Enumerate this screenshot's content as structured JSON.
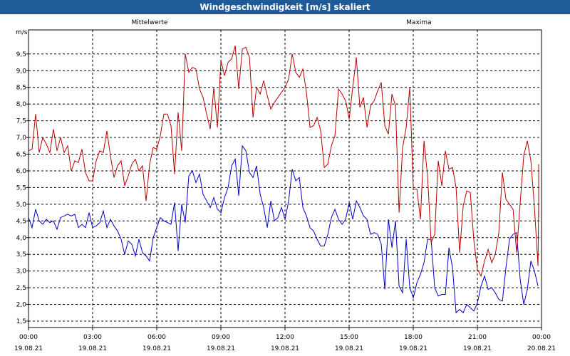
{
  "window": {
    "title": "Windgeschwindigkeit [m/s] skaliert"
  },
  "chart_data": {
    "type": "line",
    "title": "Windgeschwindigkeit [m/s] skaliert",
    "ylabel": "m/s",
    "ylim": [
      1.25,
      10.1
    ],
    "yticks": [
      "1,5",
      "2,0",
      "2,5",
      "3,0",
      "3,5",
      "4,0",
      "4,5",
      "5,0",
      "5,5",
      "6,0",
      "6,5",
      "7,0",
      "7,5",
      "8,0",
      "8,5",
      "9,0",
      "9,5"
    ],
    "xlim": [
      0,
      24
    ],
    "xticks": [
      {
        "time": "00:00",
        "date": "19.08.21"
      },
      {
        "time": "03:00",
        "date": "19.08.21"
      },
      {
        "time": "06:00",
        "date": "19.08.21"
      },
      {
        "time": "09:00",
        "date": "19.08.21"
      },
      {
        "time": "12:00",
        "date": "19.08.21"
      },
      {
        "time": "15:00",
        "date": "19.08.21"
      },
      {
        "time": "18:00",
        "date": "19.08.21"
      },
      {
        "time": "21:00",
        "date": "19.08.21"
      },
      {
        "time": "00:00",
        "date": "20.08.21"
      }
    ],
    "grid": true,
    "series": [
      {
        "name": "Mittelwerte",
        "color": "#0000cc",
        "x_step_hours": 0.1667,
        "values": [
          4.6,
          4.3,
          4.85,
          4.5,
          4.4,
          4.55,
          4.45,
          4.5,
          4.25,
          4.6,
          4.65,
          4.7,
          4.65,
          4.7,
          4.3,
          4.4,
          4.3,
          4.75,
          4.3,
          4.35,
          4.45,
          4.8,
          4.3,
          4.55,
          4.35,
          4.2,
          3.95,
          3.5,
          3.9,
          3.8,
          3.45,
          3.95,
          3.55,
          3.45,
          3.3,
          4.0,
          4.3,
          4.6,
          4.5,
          4.45,
          4.4,
          5.05,
          3.6,
          5.0,
          4.45,
          5.85,
          6.0,
          5.65,
          5.9,
          5.3,
          5.1,
          4.9,
          5.2,
          4.85,
          4.75,
          5.2,
          5.5,
          6.15,
          6.35,
          5.25,
          6.75,
          6.6,
          5.95,
          5.8,
          6.15,
          5.3,
          4.9,
          4.3,
          5.1,
          4.5,
          4.6,
          4.9,
          4.55,
          5.1,
          6.05,
          5.7,
          5.8,
          4.9,
          4.65,
          4.3,
          4.2,
          3.95,
          3.75,
          3.75,
          4.1,
          4.6,
          4.85,
          4.55,
          4.4,
          4.55,
          5.05,
          4.55,
          5.1,
          4.9,
          4.65,
          4.55,
          4.1,
          4.15,
          4.1,
          3.8,
          2.45,
          4.55,
          3.7,
          4.5,
          2.55,
          2.35,
          3.95,
          2.5,
          2.2,
          2.65,
          2.9,
          3.25,
          3.95,
          3.95,
          2.5,
          2.25,
          2.3,
          2.3,
          3.7,
          3.1,
          1.75,
          1.85,
          1.75,
          2.0,
          1.9,
          1.8,
          2.05,
          2.55,
          2.85,
          2.45,
          2.5,
          2.35,
          2.15,
          2.1,
          3.1,
          3.95,
          4.1,
          4.15,
          2.75,
          2.0,
          2.45,
          3.3,
          3.0,
          2.55
        ]
      },
      {
        "name": "Maxima",
        "color": "#bb0000",
        "x_step_hours": 0.1667,
        "values": [
          6.6,
          6.65,
          7.7,
          6.55,
          7.0,
          6.8,
          6.55,
          7.25,
          6.6,
          7.0,
          6.55,
          6.75,
          6.0,
          6.3,
          6.25,
          6.65,
          5.95,
          5.7,
          5.7,
          6.3,
          6.6,
          6.55,
          7.2,
          6.45,
          5.8,
          6.15,
          6.3,
          5.55,
          5.85,
          6.2,
          6.35,
          6.0,
          6.15,
          5.1,
          6.2,
          6.7,
          6.65,
          7.05,
          7.7,
          7.7,
          7.35,
          5.9,
          7.75,
          6.6,
          9.5,
          8.95,
          9.1,
          9.05,
          8.45,
          8.2,
          7.7,
          7.25,
          8.5,
          7.3,
          9.3,
          8.85,
          9.25,
          9.35,
          9.75,
          8.45,
          9.65,
          9.7,
          9.4,
          7.6,
          8.5,
          8.3,
          8.7,
          8.25,
          7.85,
          8.05,
          8.2,
          8.35,
          8.5,
          8.75,
          9.5,
          8.95,
          8.8,
          9.05,
          8.35,
          7.3,
          7.35,
          7.6,
          7.2,
          6.1,
          6.2,
          6.75,
          7.05,
          8.45,
          8.3,
          8.1,
          7.55,
          8.5,
          9.4,
          7.9,
          8.2,
          7.3,
          7.95,
          8.1,
          8.4,
          8.65,
          7.35,
          7.1,
          8.3,
          7.95,
          4.75,
          6.7,
          7.3,
          8.5,
          5.45,
          5.45,
          4.55,
          6.9,
          5.85,
          3.85,
          4.1,
          6.3,
          5.55,
          6.6,
          6.05,
          6.1,
          5.5,
          3.55,
          4.95,
          5.4,
          5.35,
          3.9,
          3.05,
          2.85,
          3.3,
          3.65,
          3.25,
          3.5,
          4.15,
          5.95,
          5.15,
          5.0,
          4.85,
          3.55,
          5.05,
          6.45,
          6.9,
          6.3,
          4.9,
          3.15,
          5.05,
          6.2,
          5.0,
          4.6
        ]
      }
    ]
  }
}
